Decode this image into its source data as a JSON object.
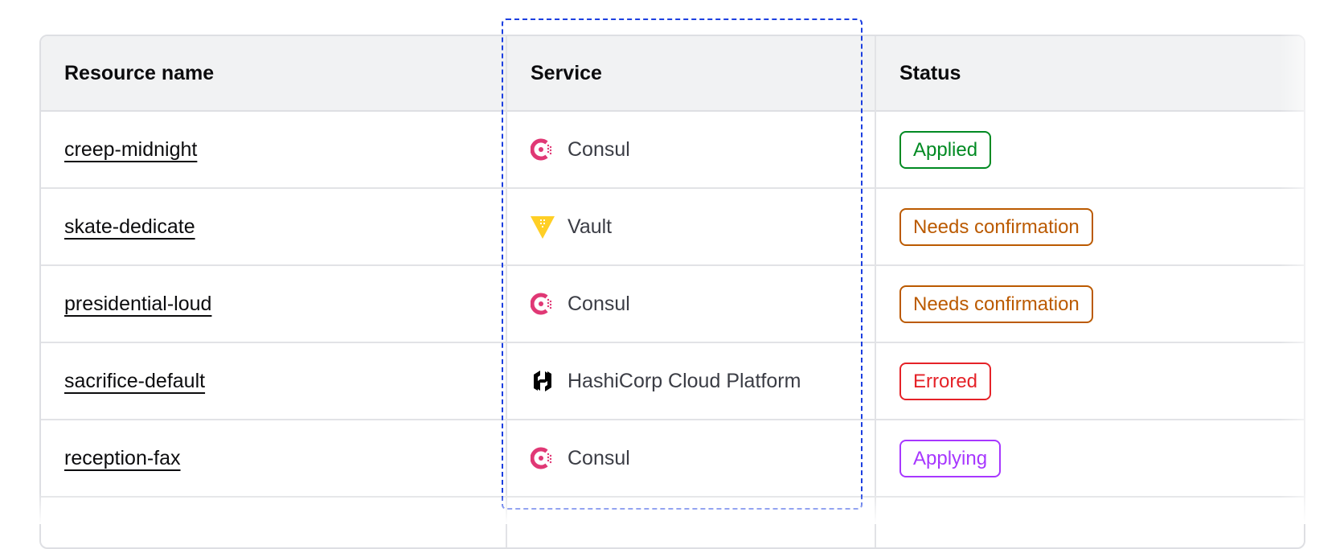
{
  "columns": [
    "Resource name",
    "Service",
    "Status"
  ],
  "rows": [
    {
      "name": "creep-midnight",
      "service": "Consul",
      "service_icon": "consul-icon",
      "status": "Applied",
      "status_color": "#008a22"
    },
    {
      "name": "skate-dedicate",
      "service": "Vault",
      "service_icon": "vault-icon",
      "status": "Needs confirmation",
      "status_color": "#bb5a00"
    },
    {
      "name": "presidential-loud",
      "service": "Consul",
      "service_icon": "consul-icon",
      "status": "Needs confirmation",
      "status_color": "#bb5a00"
    },
    {
      "name": "sacrifice-default",
      "service": "HashiCorp Cloud Platform",
      "service_icon": "hcp-icon",
      "status": "Errored",
      "status_color": "#e52228"
    },
    {
      "name": "reception-fax",
      "service": "Consul",
      "service_icon": "consul-icon",
      "status": "Applying",
      "status_color": "#a737ff"
    }
  ],
  "colors": {
    "header_bg": "#f1f2f3",
    "focus_outline": "#1c3fe0",
    "consul": "#e03875",
    "vault": "#ffcf25",
    "hcp": "#000000"
  }
}
